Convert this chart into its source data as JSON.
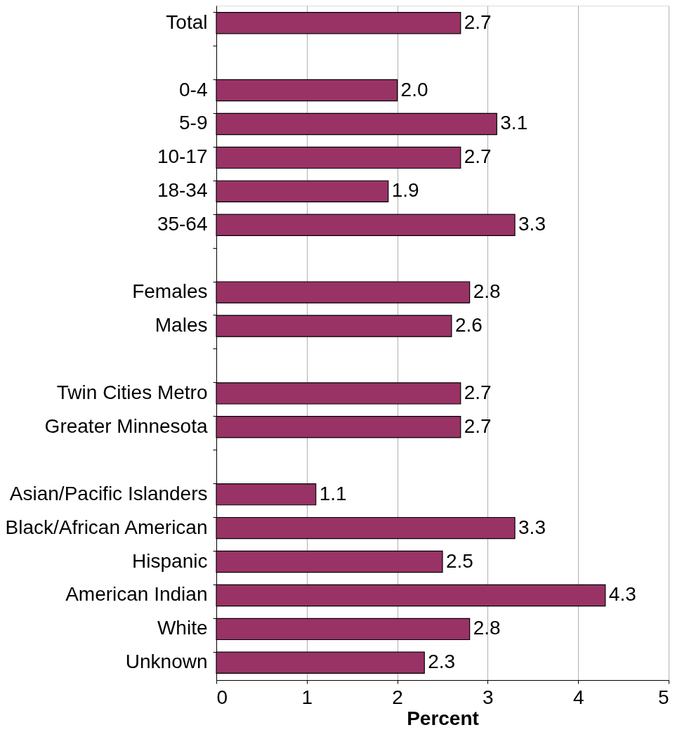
{
  "chart_data": {
    "type": "bar",
    "orientation": "horizontal",
    "xlabel": "Percent",
    "categories": [
      "Total",
      null,
      "0-4",
      "5-9",
      "10-17",
      "18-34",
      "35-64",
      null,
      "Females",
      "Males",
      null,
      "Twin Cities Metro",
      "Greater Minnesota",
      null,
      "Asian/Pacific Islanders",
      "Black/African American",
      "Hispanic",
      "American Indian",
      "White",
      "Unknown"
    ],
    "values": [
      2.7,
      null,
      2.0,
      3.1,
      2.7,
      1.9,
      3.3,
      null,
      2.8,
      2.6,
      null,
      2.7,
      2.7,
      null,
      1.1,
      3.3,
      2.5,
      4.3,
      2.8,
      2.3
    ],
    "color": "#993366",
    "value_labels": [
      "2.7",
      null,
      "2.0",
      "3.1",
      "2.7",
      "1.9",
      "3.3",
      null,
      "2.8",
      "2.6",
      null,
      "2.7",
      "2.7",
      null,
      "1.1",
      "3.3",
      "2.5",
      "4.3",
      "2.8",
      "2.3"
    ],
    "xlim": [
      0,
      5
    ],
    "xticks": [
      0,
      1,
      2,
      3,
      4,
      5
    ],
    "grid": "x"
  }
}
